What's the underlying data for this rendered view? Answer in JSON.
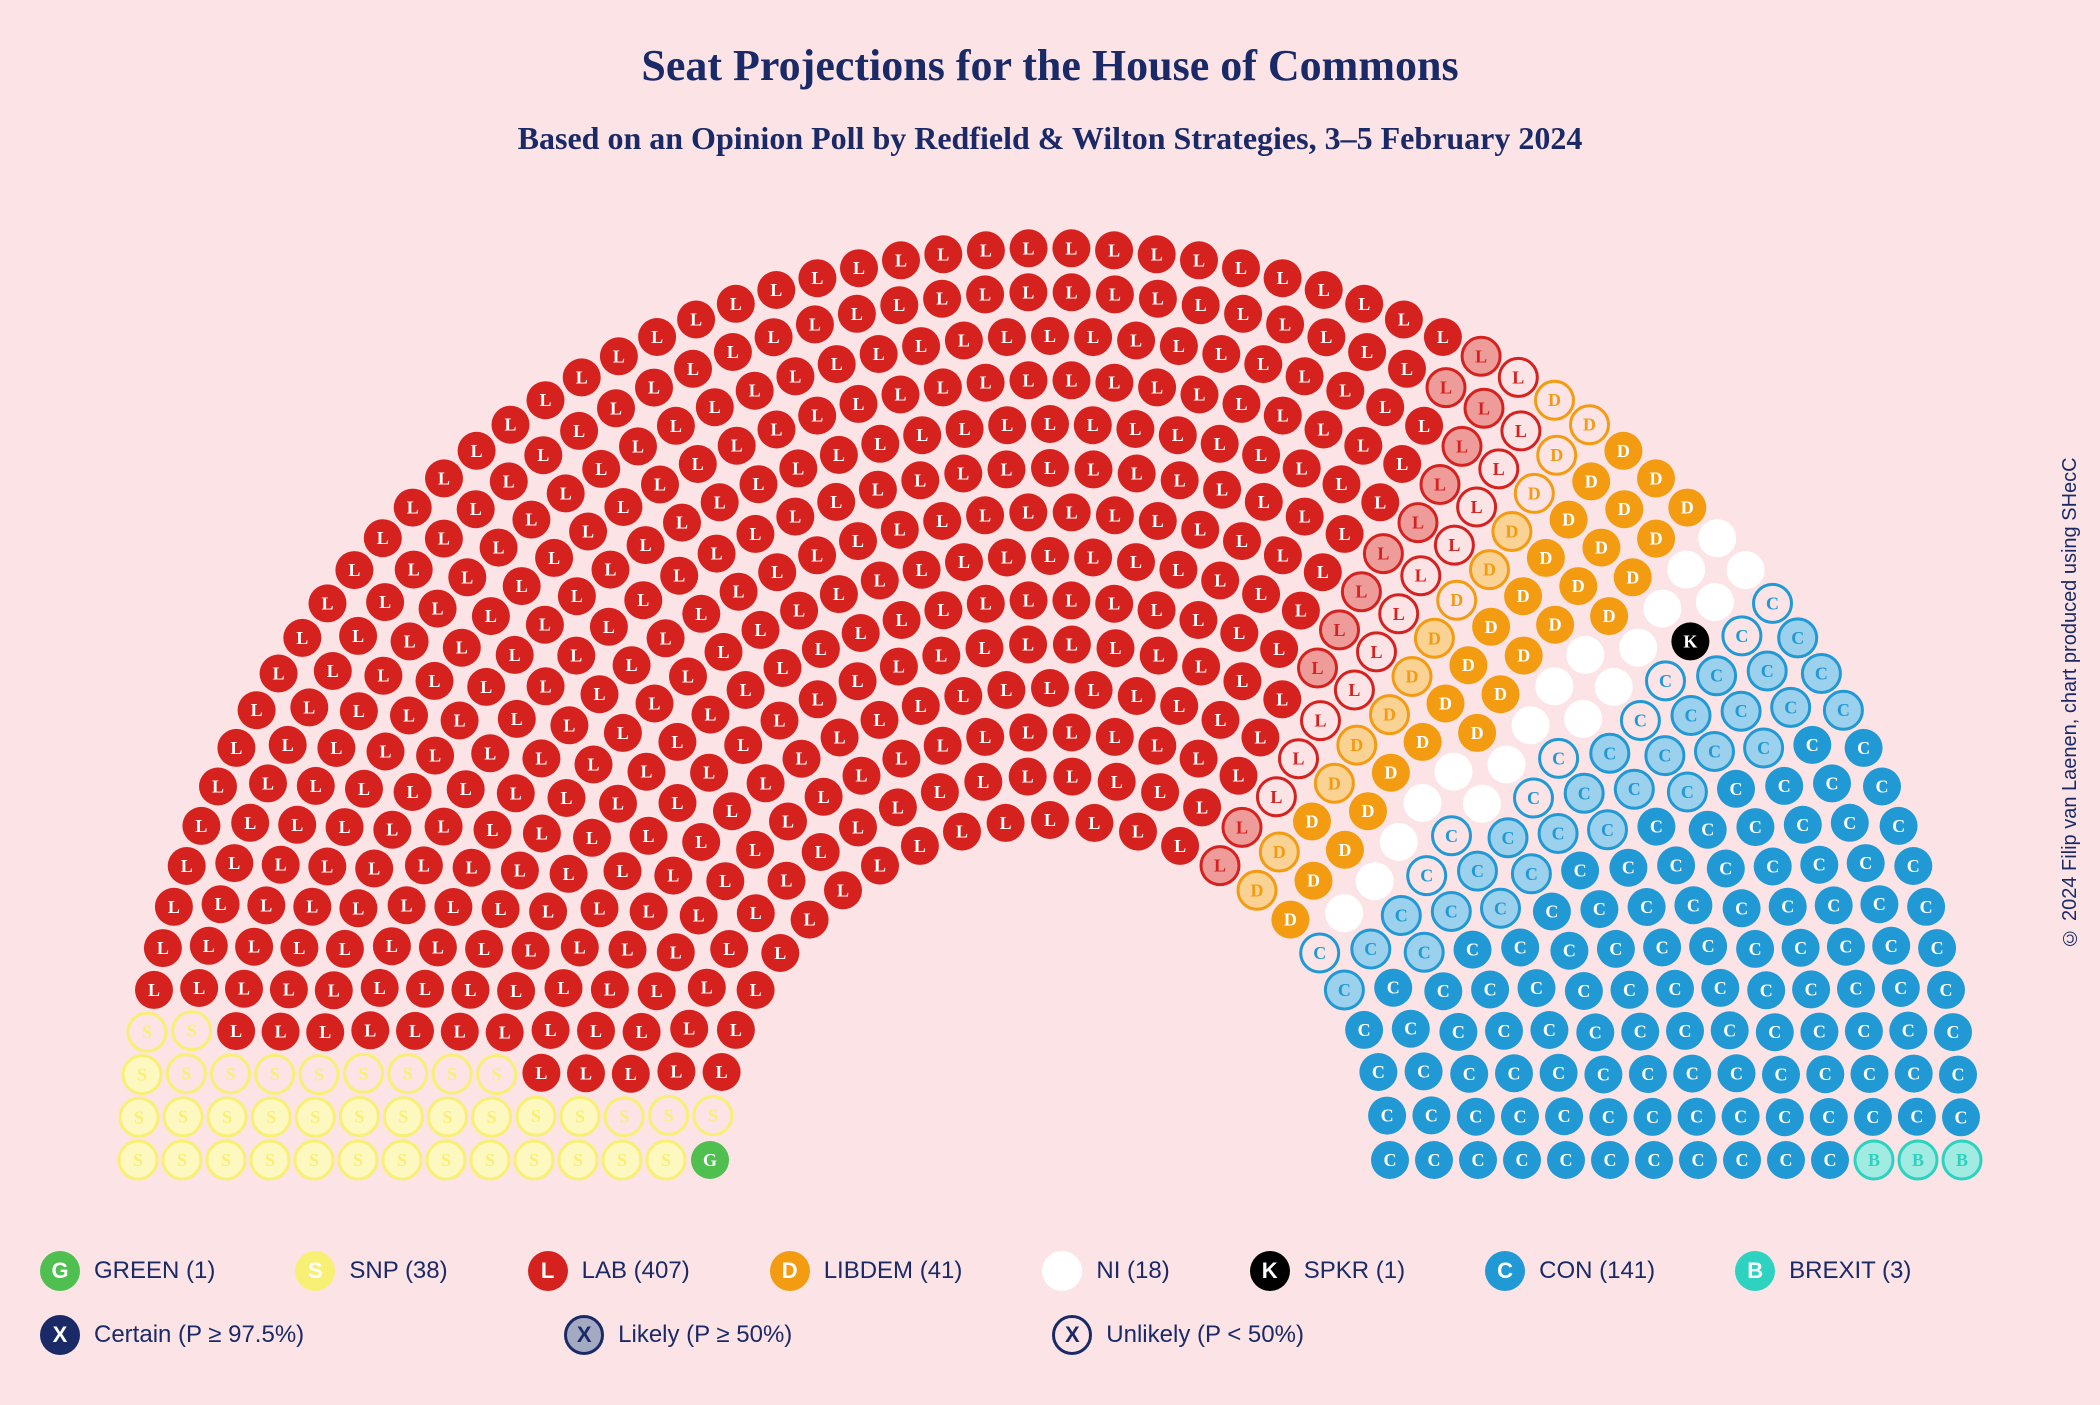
{
  "title": "Seat Projections for the House of Commons",
  "subtitle": "Based on an Opinion Poll by Redfield & Wilton Strategies, 3–5 February 2024",
  "credit": "© 2024 Filip van Laenen, chart produced using SHecC",
  "chart": {
    "type": "hemicycle",
    "total_seats": 650,
    "background_color": "#fbe3e6",
    "text_color": "#1a2a66",
    "title_fontsize": 44,
    "subtitle_fontsize": 32,
    "seat_radius": 19,
    "rows": 14,
    "inner_radius": 340,
    "row_gap": 44,
    "aspect": "semicircle"
  },
  "parties": {
    "GREEN": {
      "code": "GREEN",
      "letter": "G",
      "seats": 1,
      "color": "#4fbf4f",
      "text": "#ffffff",
      "breakdown": {
        "certain": 1,
        "likely": 0,
        "unlikely": 0
      }
    },
    "SNP": {
      "code": "SNP",
      "letter": "S",
      "seats": 38,
      "color": "#f8f074",
      "text": "#ffffff",
      "breakdown": {
        "certain": 0,
        "likely": 25,
        "unlikely": 13
      }
    },
    "LAB": {
      "code": "LAB",
      "letter": "L",
      "seats": 407,
      "color": "#d6221f",
      "text": "#ffffff",
      "breakdown": {
        "certain": 383,
        "likely": 12,
        "unlikely": 12
      }
    },
    "LIBDEM": {
      "code": "LIBDEM",
      "letter": "D",
      "seats": 41,
      "color": "#f39c12",
      "text": "#ffffff",
      "breakdown": {
        "certain": 27,
        "likely": 9,
        "unlikely": 5
      }
    },
    "NI": {
      "code": "NI",
      "letter": "",
      "seats": 18,
      "color": "#ffffff",
      "text": "#ffffff",
      "breakdown": {
        "certain": 18,
        "likely": 0,
        "unlikely": 0
      }
    },
    "SPKR": {
      "code": "SPKR",
      "letter": "K",
      "seats": 1,
      "color": "#000000",
      "text": "#ffffff",
      "breakdown": {
        "certain": 1,
        "likely": 0,
        "unlikely": 0
      }
    },
    "CON": {
      "code": "CON",
      "letter": "C",
      "seats": 141,
      "color": "#2199d5",
      "text": "#ffffff",
      "breakdown": {
        "certain": 106,
        "likely": 26,
        "unlikely": 9
      }
    },
    "BREXIT": {
      "code": "BREXIT",
      "letter": "B",
      "seats": 3,
      "color": "#2dd3c0",
      "text": "#ffffff",
      "breakdown": {
        "certain": 0,
        "likely": 3,
        "unlikely": 0
      }
    }
  },
  "party_order": [
    "GREEN",
    "SNP",
    "LAB",
    "LIBDEM",
    "NI",
    "SPKR",
    "CON",
    "BREXIT"
  ],
  "legend": {
    "row1": [
      {
        "party": "GREEN",
        "label": "GREEN (1)"
      },
      {
        "party": "SNP",
        "label": "SNP (38)"
      },
      {
        "party": "LAB",
        "label": "LAB (407)"
      },
      {
        "party": "LIBDEM",
        "label": "LIBDEM (41)"
      },
      {
        "party": "NI",
        "label": "NI (18)"
      },
      {
        "party": "SPKR",
        "label": "SPKR (1)"
      },
      {
        "party": "CON",
        "label": "CON (141)"
      },
      {
        "party": "BREXIT",
        "label": "BREXIT (3)"
      }
    ],
    "row2": [
      {
        "style": "certain",
        "letter": "X",
        "label": "Certain (P ≥ 97.5%)",
        "example_party": "SPKR"
      },
      {
        "style": "likely",
        "letter": "X",
        "label": "Likely (P ≥ 50%)",
        "example_party": "SPKR"
      },
      {
        "style": "unlikely",
        "letter": "X",
        "label": "Unlikely (P < 50%)",
        "example_party": "SPKR"
      }
    ]
  },
  "certainty_styles": {
    "certain": {
      "desc": "solid fill, white letter",
      "fill": "solid",
      "ring": false
    },
    "likely": {
      "desc": "light fill, colored ring+letter",
      "fill": "light",
      "ring": true
    },
    "unlikely": {
      "desc": "background fill, colored ring+letter",
      "fill": "bg",
      "ring": true
    }
  }
}
